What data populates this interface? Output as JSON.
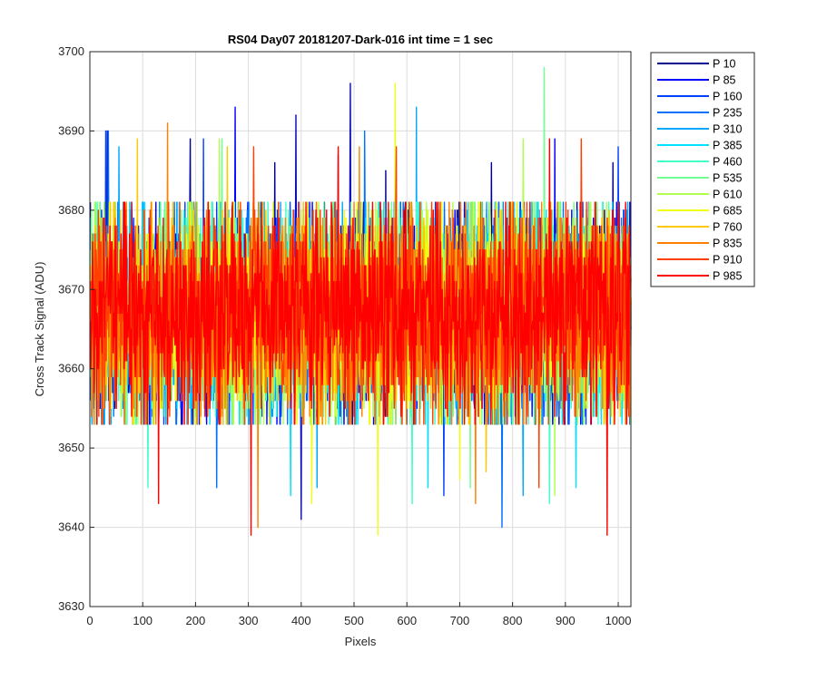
{
  "chart_data": {
    "type": "line",
    "title": "RS04 Day07 20181207-Dark-016 int time = 1 sec",
    "xlabel": "Pixels",
    "ylabel": "Cross Track Signal (ADU)",
    "xlim": [
      0,
      1024
    ],
    "ylim": [
      3630,
      3700
    ],
    "xticks": [
      0,
      100,
      200,
      300,
      400,
      500,
      600,
      700,
      800,
      900,
      1000
    ],
    "yticks": [
      3630,
      3640,
      3650,
      3660,
      3670,
      3680,
      3690,
      3700
    ],
    "grid": true,
    "legend_position": "outside-top-right",
    "series": [
      {
        "name": "P 10",
        "color": "#00008f",
        "mean": 3667,
        "spread": 6.5,
        "spikes": [
          [
            33,
            3690
          ],
          [
            190,
            3689
          ],
          [
            350,
            3686
          ],
          [
            560,
            3685
          ],
          [
            760,
            3686
          ],
          [
            990,
            3686
          ]
        ]
      },
      {
        "name": "P 85",
        "color": "#0000ff",
        "mean": 3667,
        "spread": 6.5,
        "spikes": [
          [
            275,
            3693
          ],
          [
            390,
            3692
          ],
          [
            493,
            3696
          ],
          [
            400,
            3641
          ],
          [
            880,
            3689
          ]
        ]
      },
      {
        "name": "P 160",
        "color": "#0040ff",
        "mean": 3667,
        "spread": 6.5,
        "spikes": [
          [
            30,
            3690
          ],
          [
            215,
            3689
          ],
          [
            470,
            3687
          ],
          [
            670,
            3644
          ],
          [
            1000,
            3688
          ]
        ]
      },
      {
        "name": "P 235",
        "color": "#0070ff",
        "mean": 3667,
        "spread": 6.5,
        "spikes": [
          [
            35,
            3690
          ],
          [
            240,
            3645
          ],
          [
            520,
            3690
          ],
          [
            780,
            3640
          ]
        ]
      },
      {
        "name": "P 310",
        "color": "#00a8ff",
        "mean": 3667,
        "spread": 6.5,
        "spikes": [
          [
            55,
            3688
          ],
          [
            618,
            3693
          ],
          [
            430,
            3645
          ],
          [
            820,
            3644
          ]
        ]
      },
      {
        "name": "P 385",
        "color": "#00e0ff",
        "mean": 3667,
        "spread": 6.5,
        "spikes": [
          [
            380,
            3644
          ],
          [
            640,
            3645
          ],
          [
            920,
            3645
          ]
        ]
      },
      {
        "name": "P 460",
        "color": "#40ffc8",
        "mean": 3667,
        "spread": 6.5,
        "spikes": [
          [
            610,
            3643
          ],
          [
            110,
            3645
          ],
          [
            870,
            3643
          ]
        ]
      },
      {
        "name": "P 535",
        "color": "#70ff90",
        "mean": 3667,
        "spread": 6.5,
        "spikes": [
          [
            860,
            3698
          ],
          [
            250,
            3689
          ],
          [
            720,
            3645
          ]
        ]
      },
      {
        "name": "P 610",
        "color": "#b0ff50",
        "mean": 3667,
        "spread": 6.5,
        "spikes": [
          [
            245,
            3689
          ],
          [
            880,
            3644
          ],
          [
            820,
            3689
          ]
        ]
      },
      {
        "name": "P 685",
        "color": "#f0ff10",
        "mean": 3667,
        "spread": 6.5,
        "spikes": [
          [
            578,
            3696
          ],
          [
            545,
            3639
          ],
          [
            420,
            3643
          ],
          [
            700,
            3646
          ]
        ]
      },
      {
        "name": "P 760",
        "color": "#ffc800",
        "mean": 3667,
        "spread": 6.5,
        "spikes": [
          [
            90,
            3689
          ],
          [
            260,
            3688
          ],
          [
            750,
            3647
          ]
        ]
      },
      {
        "name": "P 835",
        "color": "#ff8000",
        "mean": 3667,
        "spread": 6.5,
        "spikes": [
          [
            147,
            3691
          ],
          [
            318,
            3640
          ],
          [
            730,
            3643
          ],
          [
            510,
            3688
          ]
        ]
      },
      {
        "name": "P 910",
        "color": "#ff4000",
        "mean": 3667,
        "spread": 6.5,
        "spikes": [
          [
            310,
            3688
          ],
          [
            580,
            3688
          ],
          [
            930,
            3689
          ],
          [
            850,
            3645
          ]
        ]
      },
      {
        "name": "P 985",
        "color": "#ff0000",
        "mean": 3667,
        "spread": 6.5,
        "spikes": [
          [
            305,
            3639
          ],
          [
            979,
            3639
          ],
          [
            130,
            3643
          ],
          [
            870,
            3689
          ],
          [
            470,
            3688
          ]
        ]
      }
    ]
  }
}
